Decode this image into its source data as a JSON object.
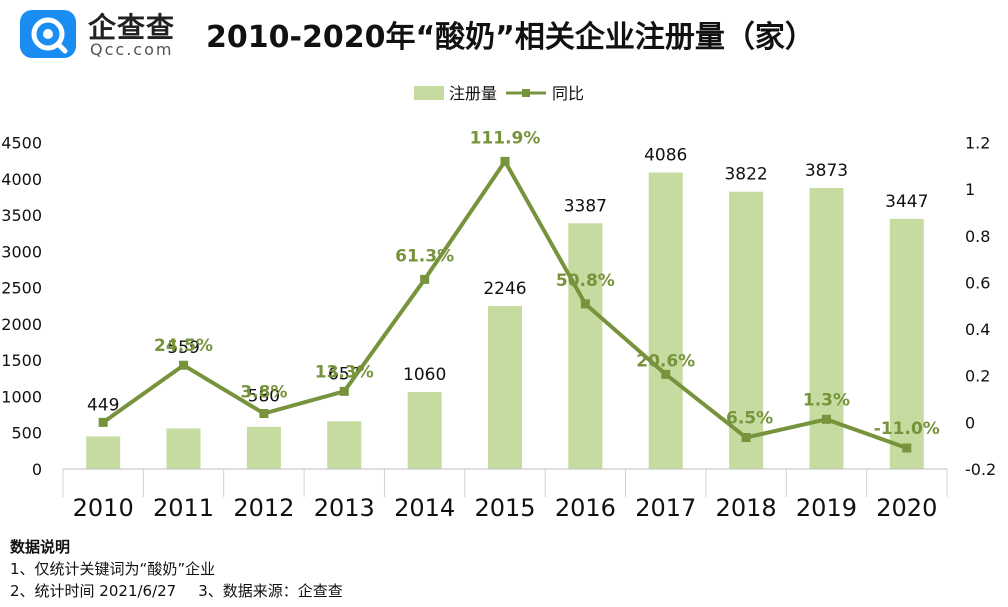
{
  "header": {
    "logo_name": "企查查",
    "logo_domain": "Qcc.com",
    "title": "2010-2020年“酸奶”相关企业注册量（家）"
  },
  "chart_data": {
    "type": "bar",
    "title": "2010-2020年“酸奶”相关企业注册量（家）",
    "categories": [
      "2010",
      "2011",
      "2012",
      "2013",
      "2014",
      "2015",
      "2016",
      "2017",
      "2018",
      "2019",
      "2020"
    ],
    "series": [
      {
        "name": "注册量",
        "type": "bar",
        "axis": "left",
        "color": "#c5dba0",
        "values": [
          449,
          559,
          580,
          657,
          1060,
          2246,
          3387,
          4086,
          3822,
          3873,
          3447
        ],
        "labels": [
          "449",
          "559",
          "580",
          "657",
          "1060",
          "2246",
          "3387",
          "4086",
          "3822",
          "3873",
          "3447"
        ]
      },
      {
        "name": "同比",
        "type": "line",
        "axis": "right",
        "color": "#77933c",
        "values": [
          0,
          0.245,
          0.038,
          0.133,
          0.613,
          1.119,
          0.508,
          0.206,
          -0.065,
          0.013,
          -0.11
        ],
        "labels": [
          "",
          "24.5%",
          "3.8%",
          "13.3%",
          "61.3%",
          "111.9%",
          "50.8%",
          "20.6%",
          "-6.5%",
          "1.3%",
          "-11.0%"
        ]
      }
    ],
    "y_left": {
      "min": 0,
      "max": 4500,
      "ticks": [
        "0",
        "500",
        "1000",
        "1500",
        "2000",
        "2500",
        "3000",
        "3500",
        "4000",
        "4500"
      ]
    },
    "y_right": {
      "min": -0.2,
      "max": 1.2,
      "ticks": [
        "-0.2",
        "0",
        "0.2",
        "0.4",
        "0.6",
        "0.8",
        "1",
        "1.2"
      ]
    },
    "legend": {
      "position": "top-center"
    },
    "grid": false
  },
  "notes": {
    "heading": "数据说明",
    "line1": "1、仅统计关键词为“酸奶”企业",
    "line2a": "2、统计时间 2021/6/27",
    "line2b": "3、数据来源：企查查"
  }
}
